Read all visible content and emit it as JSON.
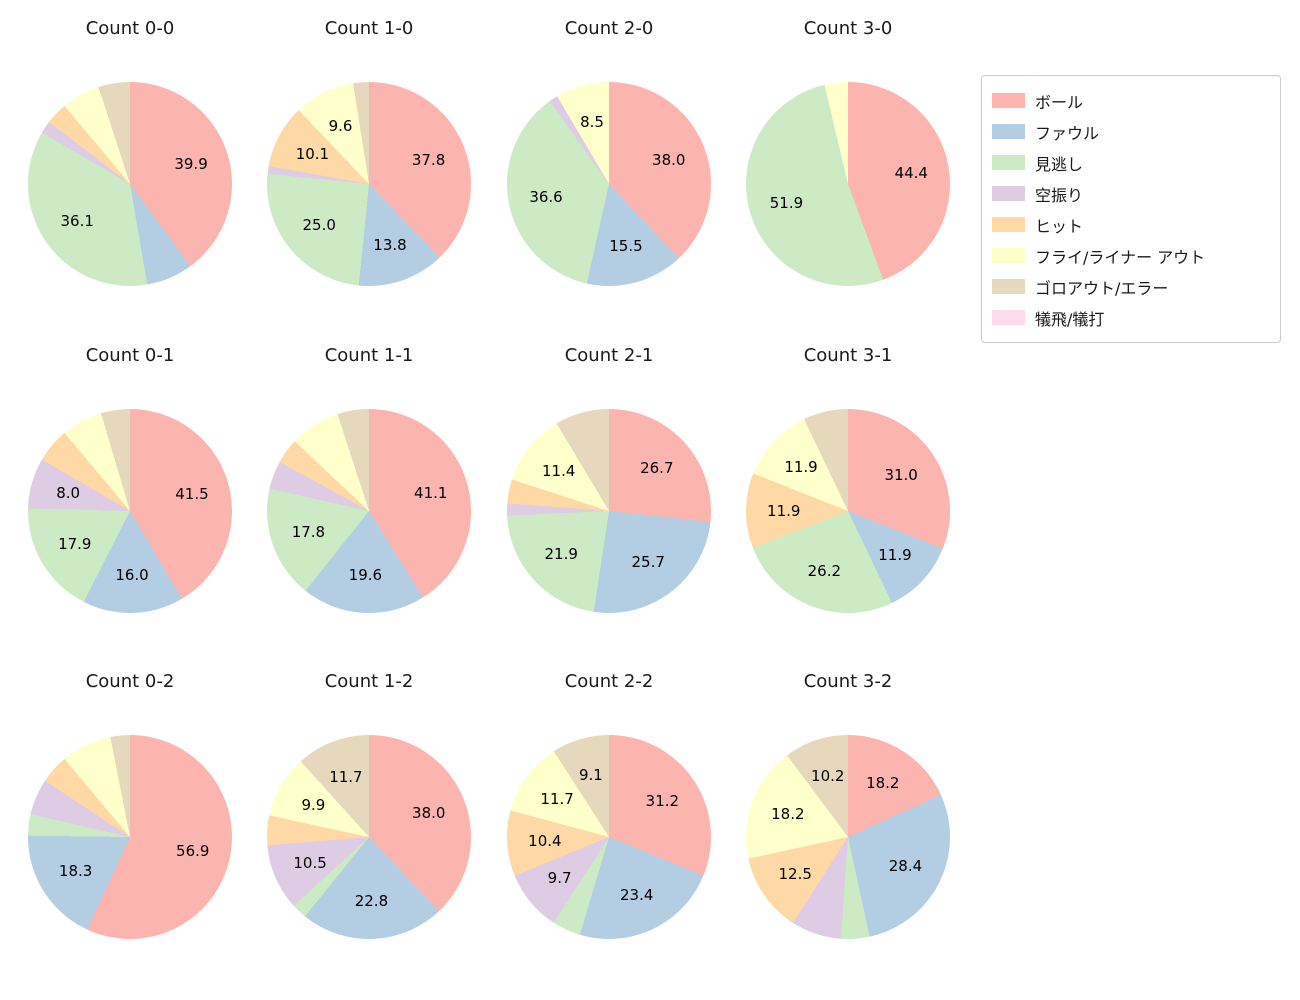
{
  "figure": {
    "background": "#ffffff"
  },
  "legend": {
    "position": "upper-right",
    "items": [
      {
        "label": "ボール",
        "color": "#fbb4ae"
      },
      {
        "label": "ファウル",
        "color": "#b3cde3"
      },
      {
        "label": "見逃し",
        "color": "#ccebc5"
      },
      {
        "label": "空振り",
        "color": "#decbe4"
      },
      {
        "label": "ヒット",
        "color": "#fed9a6"
      },
      {
        "label": "フライ/ライナー アウト",
        "color": "#ffffcc"
      },
      {
        "label": "ゴロアウト/エラー",
        "color": "#e5d8bd"
      },
      {
        "label": "犠飛/犠打",
        "color": "#fddaec"
      }
    ]
  },
  "chart_data": [
    {
      "type": "pie",
      "title": "Count 0-0",
      "slices": [
        {
          "category": "ボール",
          "value": 39.9,
          "label": "39.9"
        },
        {
          "category": "ファウル",
          "value": 7.4,
          "label": null
        },
        {
          "category": "見逃し",
          "value": 36.1,
          "label": "36.1"
        },
        {
          "category": "空振り",
          "value": 2.0,
          "label": null
        },
        {
          "category": "ヒット",
          "value": 3.5,
          "label": null
        },
        {
          "category": "フライ/ライナー アウト",
          "value": 6.1,
          "label": null
        },
        {
          "category": "ゴロアウト/エラー",
          "value": 5.0,
          "label": null
        }
      ]
    },
    {
      "type": "pie",
      "title": "Count 1-0",
      "slices": [
        {
          "category": "ボール",
          "value": 37.8,
          "label": "37.8"
        },
        {
          "category": "ファウル",
          "value": 13.8,
          "label": "13.8"
        },
        {
          "category": "見逃し",
          "value": 25.0,
          "label": "25.0"
        },
        {
          "category": "空振り",
          "value": 1.2,
          "label": null
        },
        {
          "category": "ヒット",
          "value": 10.1,
          "label": "10.1"
        },
        {
          "category": "フライ/ライナー アウト",
          "value": 9.6,
          "label": "9.6"
        },
        {
          "category": "ゴロアウト/エラー",
          "value": 2.5,
          "label": null
        }
      ]
    },
    {
      "type": "pie",
      "title": "Count 2-0",
      "slices": [
        {
          "category": "ボール",
          "value": 38.0,
          "label": "38.0"
        },
        {
          "category": "ファウル",
          "value": 15.5,
          "label": "15.5"
        },
        {
          "category": "見逃し",
          "value": 36.6,
          "label": "36.6"
        },
        {
          "category": "空振り",
          "value": 1.4,
          "label": null
        },
        {
          "category": "フライ/ライナー アウト",
          "value": 8.5,
          "label": "8.5"
        }
      ]
    },
    {
      "type": "pie",
      "title": "Count 3-0",
      "slices": [
        {
          "category": "ボール",
          "value": 44.4,
          "label": "44.4"
        },
        {
          "category": "見逃し",
          "value": 51.9,
          "label": "51.9"
        },
        {
          "category": "フライ/ライナー アウト",
          "value": 3.7,
          "label": null
        }
      ]
    },
    {
      "type": "pie",
      "title": "Count 0-1",
      "slices": [
        {
          "category": "ボール",
          "value": 41.5,
          "label": "41.5"
        },
        {
          "category": "ファウル",
          "value": 16.0,
          "label": "16.0"
        },
        {
          "category": "見逃し",
          "value": 17.9,
          "label": "17.9"
        },
        {
          "category": "空振り",
          "value": 8.0,
          "label": "8.0"
        },
        {
          "category": "ヒット",
          "value": 5.5,
          "label": null
        },
        {
          "category": "フライ/ライナー アウト",
          "value": 6.5,
          "label": null
        },
        {
          "category": "ゴロアウト/エラー",
          "value": 4.6,
          "label": null
        }
      ]
    },
    {
      "type": "pie",
      "title": "Count 1-1",
      "slices": [
        {
          "category": "ボール",
          "value": 41.1,
          "label": "41.1"
        },
        {
          "category": "ファウル",
          "value": 19.6,
          "label": "19.6"
        },
        {
          "category": "見逃し",
          "value": 17.8,
          "label": "17.8"
        },
        {
          "category": "空振り",
          "value": 4.5,
          "label": null
        },
        {
          "category": "ヒット",
          "value": 4.0,
          "label": null
        },
        {
          "category": "フライ/ライナー アウト",
          "value": 8.0,
          "label": null
        },
        {
          "category": "ゴロアウト/エラー",
          "value": 5.0,
          "label": null
        }
      ]
    },
    {
      "type": "pie",
      "title": "Count 2-1",
      "slices": [
        {
          "category": "ボール",
          "value": 26.7,
          "label": "26.7"
        },
        {
          "category": "ファウル",
          "value": 25.7,
          "label": "25.7"
        },
        {
          "category": "見逃し",
          "value": 21.9,
          "label": "21.9"
        },
        {
          "category": "空振り",
          "value": 1.9,
          "label": null
        },
        {
          "category": "ヒット",
          "value": 3.8,
          "label": null
        },
        {
          "category": "フライ/ライナー アウト",
          "value": 11.4,
          "label": "11.4"
        },
        {
          "category": "ゴロアウト/エラー",
          "value": 8.6,
          "label": null
        }
      ]
    },
    {
      "type": "pie",
      "title": "Count 3-1",
      "slices": [
        {
          "category": "ボール",
          "value": 31.0,
          "label": "31.0"
        },
        {
          "category": "ファウル",
          "value": 11.9,
          "label": "11.9"
        },
        {
          "category": "見逃し",
          "value": 26.2,
          "label": "26.2"
        },
        {
          "category": "ヒット",
          "value": 11.9,
          "label": "11.9"
        },
        {
          "category": "フライ/ライナー アウト",
          "value": 11.9,
          "label": "11.9"
        },
        {
          "category": "ゴロアウト/エラー",
          "value": 7.1,
          "label": null
        }
      ]
    },
    {
      "type": "pie",
      "title": "Count 0-2",
      "slices": [
        {
          "category": "ボール",
          "value": 56.9,
          "label": "56.9"
        },
        {
          "category": "ファウル",
          "value": 18.3,
          "label": "18.3"
        },
        {
          "category": "見逃し",
          "value": 3.4,
          "label": null
        },
        {
          "category": "空振り",
          "value": 5.7,
          "label": null
        },
        {
          "category": "ヒット",
          "value": 4.6,
          "label": null
        },
        {
          "category": "フライ/ライナー アウト",
          "value": 8.0,
          "label": null
        },
        {
          "category": "ゴロアウト/エラー",
          "value": 3.1,
          "label": null
        }
      ]
    },
    {
      "type": "pie",
      "title": "Count 1-2",
      "slices": [
        {
          "category": "ボール",
          "value": 38.0,
          "label": "38.0"
        },
        {
          "category": "ファウル",
          "value": 22.8,
          "label": "22.8"
        },
        {
          "category": "見逃し",
          "value": 2.4,
          "label": null
        },
        {
          "category": "空振り",
          "value": 10.5,
          "label": "10.5"
        },
        {
          "category": "ヒット",
          "value": 4.7,
          "label": null
        },
        {
          "category": "フライ/ライナー アウト",
          "value": 9.9,
          "label": "9.9"
        },
        {
          "category": "ゴロアウト/エラー",
          "value": 11.7,
          "label": "11.7"
        }
      ]
    },
    {
      "type": "pie",
      "title": "Count 2-2",
      "slices": [
        {
          "category": "ボール",
          "value": 31.2,
          "label": "31.2"
        },
        {
          "category": "ファウル",
          "value": 23.4,
          "label": "23.4"
        },
        {
          "category": "見逃し",
          "value": 4.5,
          "label": null
        },
        {
          "category": "空振り",
          "value": 9.7,
          "label": "9.7"
        },
        {
          "category": "ヒット",
          "value": 10.4,
          "label": "10.4"
        },
        {
          "category": "フライ/ライナー アウト",
          "value": 11.7,
          "label": "11.7"
        },
        {
          "category": "ゴロアウト/エラー",
          "value": 9.1,
          "label": "9.1"
        }
      ]
    },
    {
      "type": "pie",
      "title": "Count 3-2",
      "slices": [
        {
          "category": "ボール",
          "value": 18.2,
          "label": "18.2"
        },
        {
          "category": "ファウル",
          "value": 28.4,
          "label": "28.4"
        },
        {
          "category": "見逃し",
          "value": 4.5,
          "label": null
        },
        {
          "category": "空振り",
          "value": 8.0,
          "label": null
        },
        {
          "category": "ヒット",
          "value": 12.5,
          "label": "12.5"
        },
        {
          "category": "フライ/ライナー アウト",
          "value": 18.2,
          "label": "18.2"
        },
        {
          "category": "ゴロアウト/エラー",
          "value": 10.2,
          "label": "10.2"
        }
      ]
    }
  ]
}
